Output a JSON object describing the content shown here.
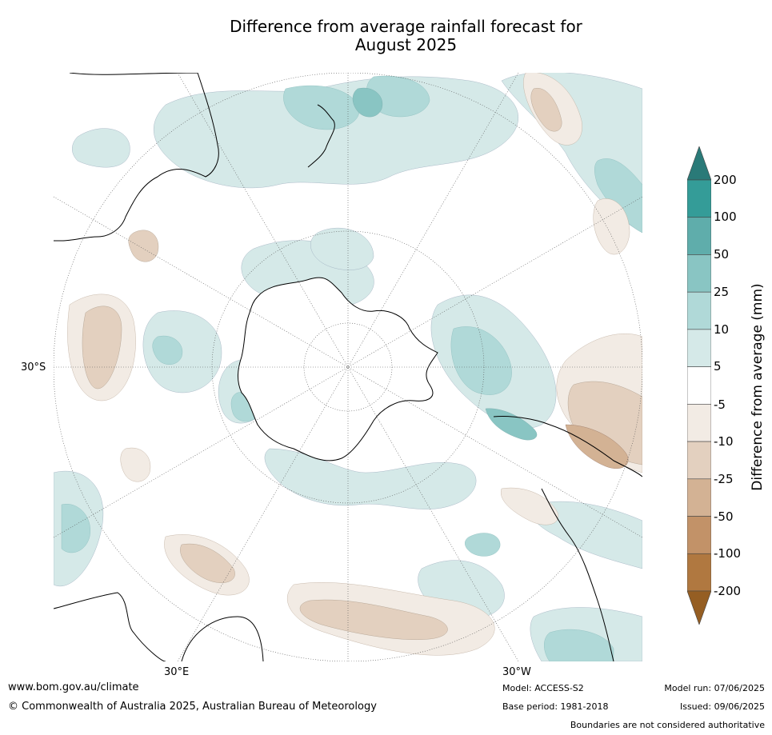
{
  "title": [
    "Difference from average rainfall forecast for",
    "August 2025"
  ],
  "map": {
    "projection": "south polar stereographic",
    "latitude_labels": [
      "30°S"
    ],
    "longitude_labels": [
      "30°E",
      "30°W"
    ]
  },
  "colorbar": {
    "label": "Difference from average (mm)",
    "extend": "both",
    "ticks": [
      "200",
      "100",
      "50",
      "25",
      "10",
      "5",
      "-5",
      "-10",
      "-25",
      "-50",
      "-100",
      "-200"
    ],
    "colors": [
      "#2a7a78",
      "#349c98",
      "#5fadab",
      "#89c5c3",
      "#b0d9d8",
      "#d5e9e8",
      "#ffffff",
      "#f2ebe4",
      "#e3d0bf",
      "#d3b294",
      "#c29268",
      "#b07840",
      "#955e23"
    ]
  },
  "footer": {
    "website": "www.bom.gov.au/climate",
    "copyright": "© Commonwealth of Australia 2025, Australian Bureau of Meteorology",
    "model": "Model: ACCESS-S2",
    "base_period": "Base period: 1981-2018",
    "model_run": "Model run: 07/06/2025",
    "issued": "Issued: 09/06/2025",
    "disclaimer": "Boundaries are not considered authoritative"
  }
}
